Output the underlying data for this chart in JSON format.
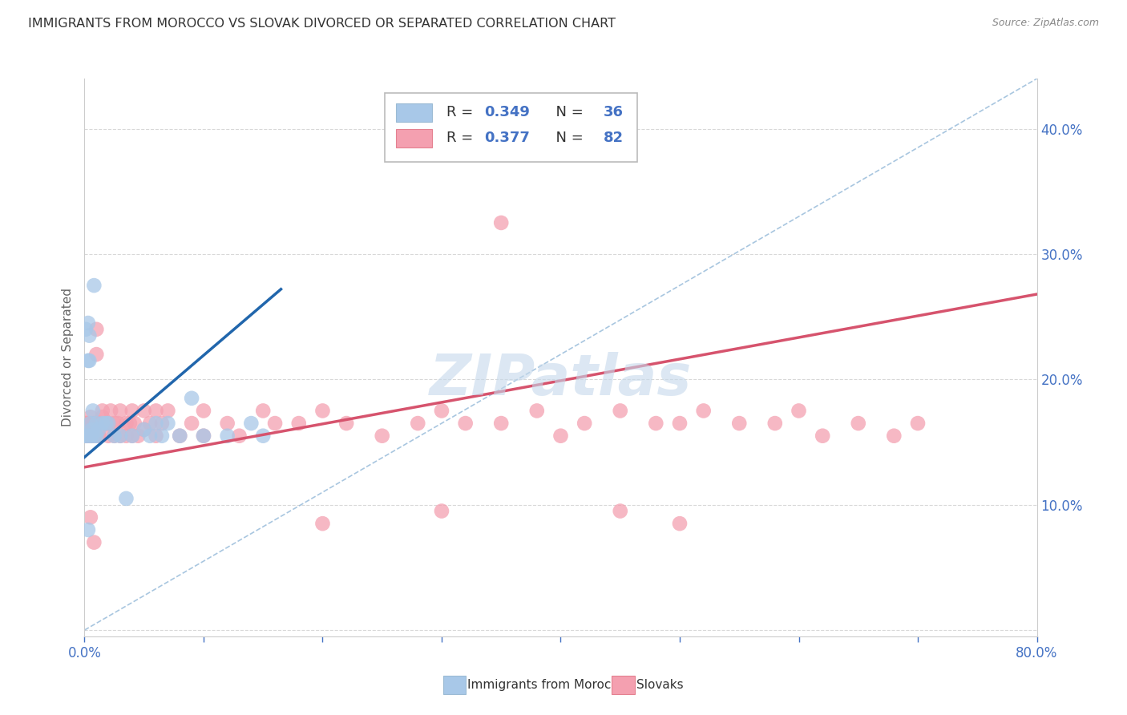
{
  "title": "IMMIGRANTS FROM MOROCCO VS SLOVAK DIVORCED OR SEPARATED CORRELATION CHART",
  "source": "Source: ZipAtlas.com",
  "ylabel": "Divorced or Separated",
  "xmin": 0.0,
  "xmax": 0.8,
  "ymin": -0.005,
  "ymax": 0.44,
  "yticks": [
    0.0,
    0.1,
    0.2,
    0.3,
    0.4
  ],
  "xticks": [
    0.0,
    0.1,
    0.2,
    0.3,
    0.4,
    0.5,
    0.6,
    0.7,
    0.8
  ],
  "legend_blue_r": "0.349",
  "legend_blue_n": "36",
  "legend_pink_r": "0.377",
  "legend_pink_n": "82",
  "legend_blue_label": "Immigrants from Morocco",
  "legend_pink_label": "Slovaks",
  "blue_dot_color": "#a8c8e8",
  "pink_dot_color": "#f4a0b0",
  "blue_line_color": "#2166ac",
  "pink_line_color": "#d6536d",
  "dash_line_color": "#93b8d8",
  "watermark_color": "#c5d8eb",
  "title_color": "#333333",
  "source_color": "#888888",
  "axis_color": "#4472c4",
  "ylabel_color": "#666666",
  "grid_color": "#d8d8d8",
  "legend_text_color": "#333333",
  "legend_value_color": "#4472c4",
  "blue_x": [
    0.001,
    0.001,
    0.002,
    0.003,
    0.003,
    0.004,
    0.004,
    0.005,
    0.005,
    0.006,
    0.006,
    0.007,
    0.008,
    0.009,
    0.01,
    0.01,
    0.012,
    0.015,
    0.018,
    0.02,
    0.025,
    0.03,
    0.035,
    0.04,
    0.05,
    0.055,
    0.06,
    0.065,
    0.07,
    0.08,
    0.09,
    0.1,
    0.12,
    0.14,
    0.15,
    0.003
  ],
  "blue_y": [
    0.155,
    0.24,
    0.155,
    0.245,
    0.215,
    0.235,
    0.215,
    0.165,
    0.155,
    0.16,
    0.155,
    0.175,
    0.275,
    0.155,
    0.165,
    0.155,
    0.16,
    0.165,
    0.165,
    0.165,
    0.155,
    0.155,
    0.105,
    0.155,
    0.16,
    0.155,
    0.165,
    0.155,
    0.165,
    0.155,
    0.185,
    0.155,
    0.155,
    0.165,
    0.155,
    0.08
  ],
  "pink_x": [
    0.001,
    0.001,
    0.002,
    0.002,
    0.003,
    0.003,
    0.004,
    0.004,
    0.005,
    0.005,
    0.006,
    0.006,
    0.007,
    0.008,
    0.008,
    0.009,
    0.01,
    0.01,
    0.012,
    0.012,
    0.015,
    0.015,
    0.018,
    0.02,
    0.02,
    0.022,
    0.025,
    0.025,
    0.028,
    0.03,
    0.03,
    0.035,
    0.035,
    0.038,
    0.04,
    0.04,
    0.042,
    0.045,
    0.05,
    0.05,
    0.055,
    0.06,
    0.06,
    0.065,
    0.07,
    0.08,
    0.09,
    0.1,
    0.1,
    0.12,
    0.13,
    0.15,
    0.16,
    0.18,
    0.2,
    0.22,
    0.25,
    0.28,
    0.3,
    0.32,
    0.35,
    0.38,
    0.4,
    0.42,
    0.45,
    0.48,
    0.5,
    0.52,
    0.55,
    0.58,
    0.6,
    0.62,
    0.65,
    0.68,
    0.7,
    0.005,
    0.008,
    0.2,
    0.35,
    0.5,
    0.3,
    0.45
  ],
  "pink_y": [
    0.165,
    0.155,
    0.165,
    0.155,
    0.165,
    0.16,
    0.165,
    0.155,
    0.17,
    0.155,
    0.165,
    0.16,
    0.155,
    0.165,
    0.16,
    0.155,
    0.24,
    0.22,
    0.165,
    0.155,
    0.175,
    0.17,
    0.165,
    0.165,
    0.155,
    0.175,
    0.165,
    0.155,
    0.165,
    0.175,
    0.155,
    0.165,
    0.155,
    0.165,
    0.175,
    0.155,
    0.165,
    0.155,
    0.175,
    0.16,
    0.165,
    0.175,
    0.155,
    0.165,
    0.175,
    0.155,
    0.165,
    0.175,
    0.155,
    0.165,
    0.155,
    0.175,
    0.165,
    0.165,
    0.175,
    0.165,
    0.155,
    0.165,
    0.175,
    0.165,
    0.165,
    0.175,
    0.155,
    0.165,
    0.175,
    0.165,
    0.165,
    0.175,
    0.165,
    0.165,
    0.175,
    0.155,
    0.165,
    0.155,
    0.165,
    0.09,
    0.07,
    0.085,
    0.325,
    0.085,
    0.095,
    0.095
  ],
  "blue_line_x": [
    0.0,
    0.165
  ],
  "blue_line_y": [
    0.138,
    0.272
  ],
  "pink_line_x": [
    0.0,
    0.8
  ],
  "pink_line_y": [
    0.13,
    0.268
  ],
  "dash_line_x": [
    0.0,
    0.8
  ],
  "dash_line_y": [
    0.0,
    0.44
  ]
}
